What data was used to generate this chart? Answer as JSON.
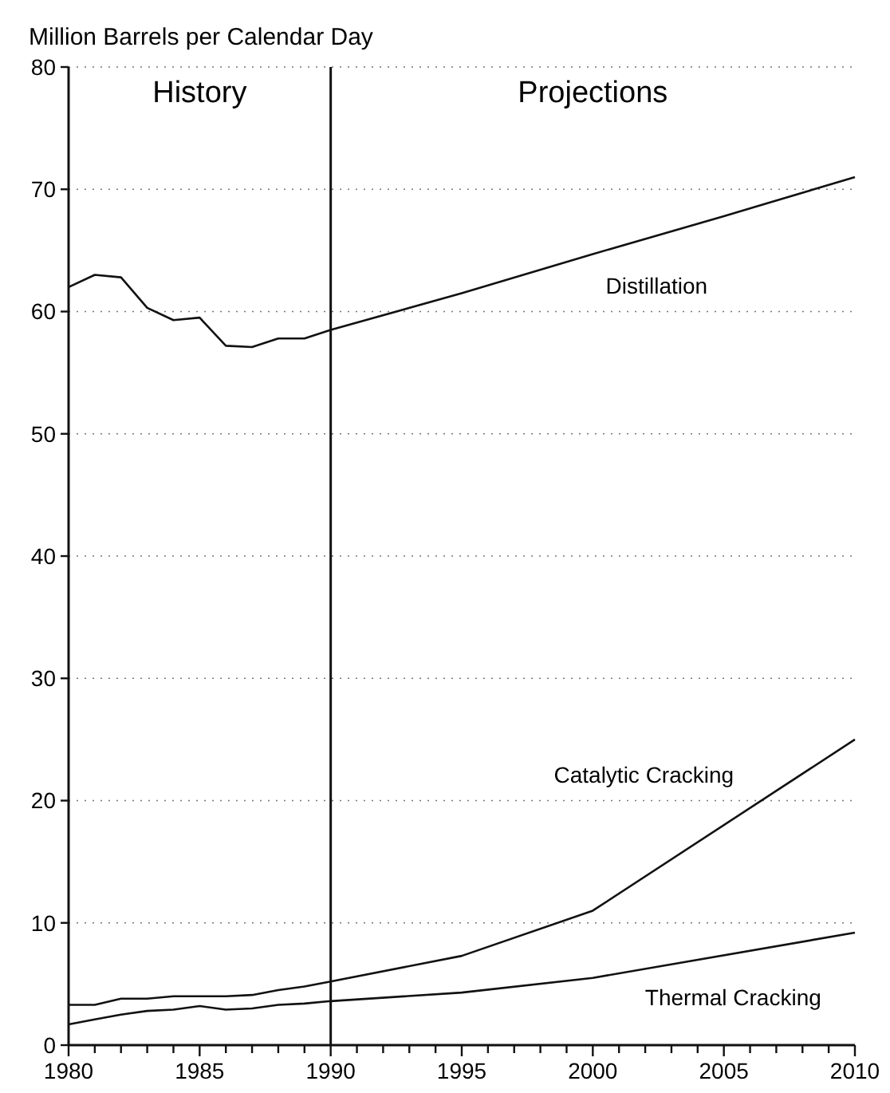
{
  "chart_data": {
    "type": "line",
    "ylabel": "Million Barrels per Calendar Day",
    "x": [
      1980,
      1981,
      1982,
      1983,
      1984,
      1985,
      1986,
      1987,
      1988,
      1989,
      1990,
      1995,
      2000,
      2005,
      2010
    ],
    "series": [
      {
        "name": "Distillation",
        "color": "#111111",
        "values": [
          62,
          63,
          62.8,
          60.3,
          59.3,
          59.5,
          57.2,
          57.1,
          57.8,
          57.8,
          58.5,
          61.5,
          64.7,
          67.8,
          71
        ]
      },
      {
        "name": "Catalytic Cracking",
        "color": "#111111",
        "x": [
          1980,
          1981,
          1982,
          1983,
          1984,
          1985,
          1986,
          1987,
          1988,
          1989,
          1990,
          1995,
          2000,
          2010
        ],
        "values": [
          3.3,
          3.3,
          3.8,
          3.8,
          4,
          4,
          4,
          4.1,
          4.5,
          4.8,
          5.2,
          7.3,
          11,
          25
        ]
      },
      {
        "name": "Thermal Cracking",
        "color": "#111111",
        "x": [
          1980,
          1981,
          1982,
          1983,
          1984,
          1985,
          1986,
          1987,
          1988,
          1989,
          1990,
          1995,
          2000,
          2010
        ],
        "values": [
          1.7,
          2.1,
          2.5,
          2.8,
          2.9,
          3.2,
          2.9,
          3,
          3.3,
          3.4,
          3.6,
          4.3,
          5.5,
          9.2
        ]
      }
    ],
    "xlim": [
      1980,
      2010
    ],
    "xticks": [
      1980,
      {
        "value": 1981,
        "label": null
      },
      {
        "value": 1982,
        "label": null
      },
      {
        "value": 1983,
        "label": null
      },
      {
        "value": 1984,
        "label": null
      },
      1985,
      {
        "value": 1986,
        "label": null
      },
      {
        "value": 1987,
        "label": null
      },
      {
        "value": 1988,
        "label": null
      },
      {
        "value": 1989,
        "label": null
      },
      1990,
      {
        "value": 1991,
        "label": null
      },
      {
        "value": 1992,
        "label": null
      },
      {
        "value": 1993,
        "label": null
      },
      {
        "value": 1994,
        "label": null
      },
      1995,
      {
        "value": 1996,
        "label": null
      },
      {
        "value": 1997,
        "label": null
      },
      {
        "value": 1998,
        "label": null
      },
      {
        "value": 1999,
        "label": null
      },
      2000,
      {
        "value": 2001,
        "label": null
      },
      {
        "value": 2002,
        "label": null
      },
      {
        "value": 2003,
        "label": null
      },
      {
        "value": 2004,
        "label": null
      },
      2005,
      {
        "value": 2006,
        "label": null
      },
      {
        "value": 2007,
        "label": null
      },
      {
        "value": 2008,
        "label": null
      },
      {
        "value": 2009,
        "label": null
      },
      2010
    ],
    "ylim": [
      0,
      80
    ],
    "yticks": [
      0,
      10,
      20,
      30,
      40,
      50,
      60,
      70,
      80
    ],
    "grid": "y",
    "marker": "none",
    "line_style": "solid",
    "ref_lines": [
      {
        "axis": "x",
        "value": 1990,
        "label": null,
        "color": "#111111"
      }
    ],
    "annotations": [
      "History",
      "Projections"
    ]
  }
}
